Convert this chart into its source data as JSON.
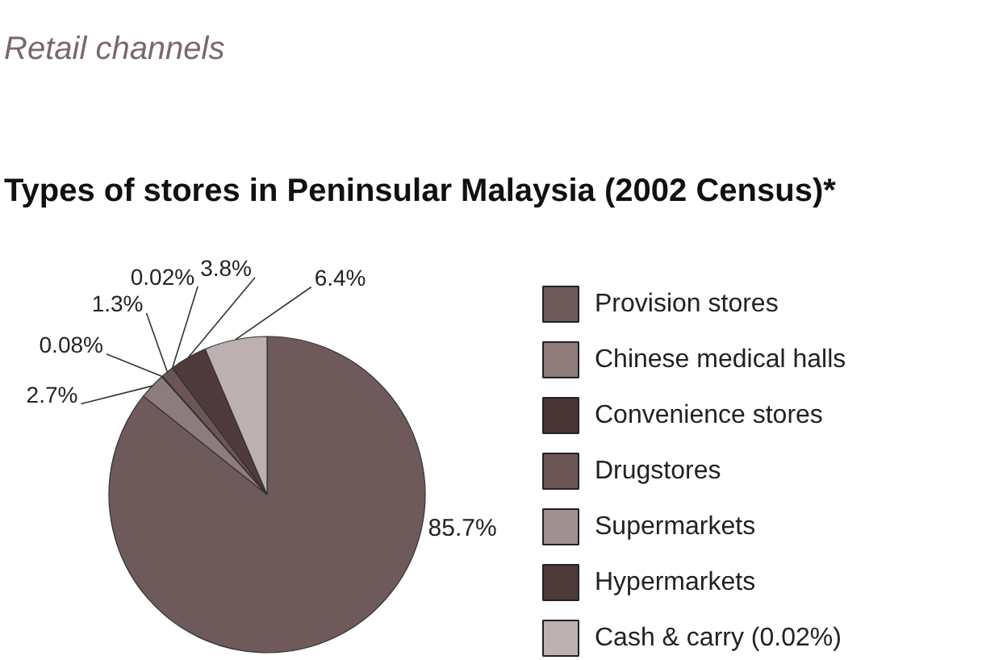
{
  "chart_data": {
    "type": "pie",
    "subtitle": "Retail channels",
    "title": "Types of stores in Peninsular Malaysia (2002 Census)*",
    "categories": [
      "Provision stores",
      "Chinese medical halls",
      "Convenience stores",
      "Drugstores",
      "Supermarkets",
      "Hypermarkets",
      "Cash & carry (0.02%)"
    ],
    "values": [
      85.7,
      2.7,
      0.08,
      1.3,
      0.02,
      3.8,
      6.4
    ],
    "colors": [
      "#6e5a5a",
      "#8e7b7b",
      "#4a3535",
      "#6b5555",
      "#a08f8f",
      "#4f3a3c",
      "#bcb0b0"
    ],
    "value_labels": [
      "85.7%",
      "2.7%",
      "0.08%",
      "1.3%",
      "0.02%",
      "3.8%",
      "6.4%"
    ],
    "legend": "right"
  }
}
